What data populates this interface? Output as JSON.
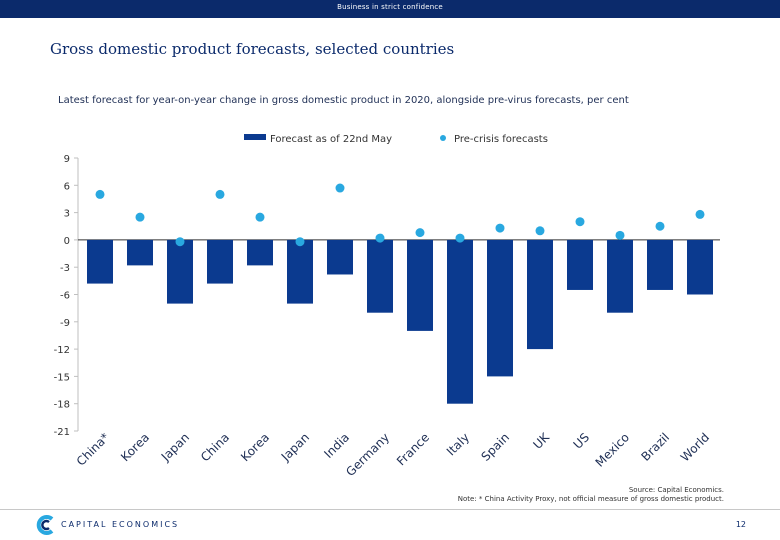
{
  "header": {
    "confidential": "Business in strict confidence"
  },
  "page": {
    "title": "Gross domestic product forecasts, selected countries"
  },
  "chart_data": {
    "type": "bar",
    "subtitle": "Latest forecast for year-on-year change in gross domestic product in 2020, alongside pre-virus forecasts, per cent",
    "categories": [
      "China*",
      "Korea",
      "Japan",
      "China",
      "Korea",
      "Japan",
      "India",
      "Germany",
      "France",
      "Italy",
      "Spain",
      "UK",
      "US",
      "Mexico",
      "Brazil",
      "World"
    ],
    "series": [
      {
        "name": "Forecast as of 22nd May",
        "kind": "bar",
        "color": "#0b3a8f",
        "values": [
          -4.8,
          -2.8,
          -7,
          -4.8,
          -2.8,
          -7,
          -3.8,
          -8,
          -10,
          -18,
          -15,
          -12,
          -5.5,
          -8,
          -5.5,
          -6
        ]
      },
      {
        "name": "Pre-crisis forecasts",
        "kind": "dot",
        "color": "#29a8e0",
        "values": [
          5,
          2.5,
          -0.2,
          5,
          2.5,
          -0.2,
          5.7,
          0.2,
          0.8,
          0.2,
          1.3,
          1,
          2,
          0.5,
          1.5,
          2.8
        ]
      }
    ],
    "yticks": [
      "9",
      "6",
      "3",
      "0",
      "-3",
      "-6",
      "-9",
      "-12",
      "-15",
      "-18",
      "-21"
    ],
    "ylim": [
      -21,
      9
    ],
    "legend": [
      "Forecast as of 22nd May",
      "Pre-crisis forecasts"
    ],
    "legend_position": "top"
  },
  "footer": {
    "source": "Source: Capital Economics.",
    "note": "Note: * China Activity Proxy, not official measure of gross domestic product.",
    "company": "CAPITAL ECONOMICS",
    "page_number": "12"
  },
  "colors": {
    "brand": "#0b2a6b",
    "bar": "#0b3a8f",
    "dot": "#29a8e0"
  }
}
